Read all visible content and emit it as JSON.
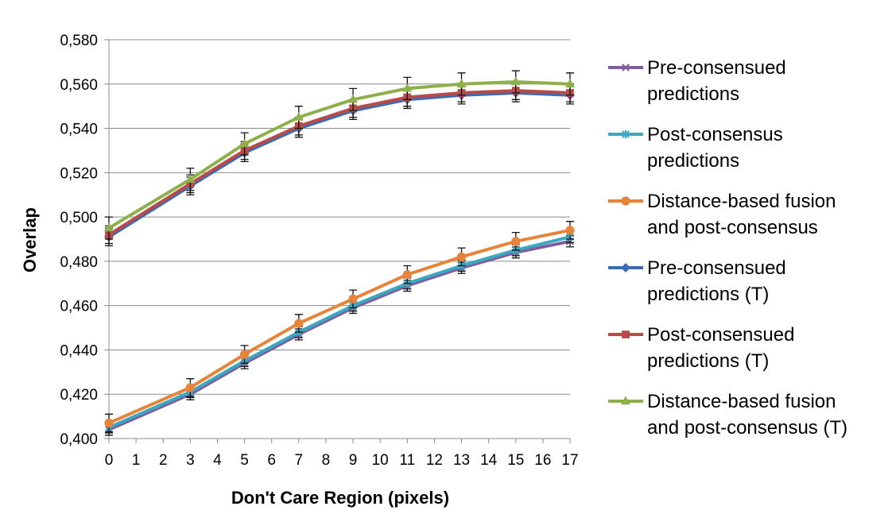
{
  "chart_data": {
    "type": "line",
    "title": "",
    "xlabel": "Don't Care Region (pixels)",
    "ylabel": "Overlap",
    "x_ticks": [
      "0",
      "1",
      "2",
      "3",
      "4",
      "5",
      "6",
      "7",
      "8",
      "9",
      "10",
      "11",
      "12",
      "13",
      "14",
      "15",
      "16",
      "17"
    ],
    "x": [
      0,
      3,
      5,
      7,
      9,
      11,
      13,
      15,
      17
    ],
    "ylim": [
      0.4,
      0.58
    ],
    "y_ticks": [
      {
        "value": 0.4,
        "label": "0,400"
      },
      {
        "value": 0.42,
        "label": "0,420"
      },
      {
        "value": 0.44,
        "label": "0,440"
      },
      {
        "value": 0.46,
        "label": "0,460"
      },
      {
        "value": 0.48,
        "label": "0,480"
      },
      {
        "value": 0.5,
        "label": "0,500"
      },
      {
        "value": 0.52,
        "label": "0,520"
      },
      {
        "value": 0.54,
        "label": "0,540"
      },
      {
        "value": 0.56,
        "label": "0,560"
      },
      {
        "value": 0.58,
        "label": "0,580"
      }
    ],
    "grid": "horizontal",
    "legend_position": "right",
    "error_bars": true,
    "series": [
      {
        "name": "Pre-consensued predictions",
        "label_lines": [
          "Pre-consensued",
          "predictions"
        ],
        "color": "#7E5C9E",
        "marker": "x",
        "values": [
          0.404,
          0.42,
          0.434,
          0.447,
          0.459,
          0.469,
          0.477,
          0.484,
          0.489
        ],
        "errors": [
          0.0025,
          0.0025,
          0.0025,
          0.0025,
          0.0025,
          0.0025,
          0.0025,
          0.0025,
          0.0025
        ]
      },
      {
        "name": "Post-consensus predictions",
        "label_lines": [
          "Post-consensus",
          "predictions"
        ],
        "color": "#3AA8C1",
        "marker": "asterisk",
        "values": [
          0.405,
          0.421,
          0.435,
          0.448,
          0.46,
          0.47,
          0.478,
          0.485,
          0.491
        ],
        "errors": [
          0.0025,
          0.0025,
          0.0025,
          0.0025,
          0.0025,
          0.0025,
          0.0025,
          0.0025,
          0.0025
        ]
      },
      {
        "name": "Distance-based fusion and post-consensus",
        "label_lines": [
          "Distance-based fusion",
          "and post-consensus"
        ],
        "color": "#E8843A",
        "marker": "circle",
        "values": [
          0.407,
          0.423,
          0.438,
          0.452,
          0.463,
          0.474,
          0.482,
          0.489,
          0.494
        ],
        "errors": [
          0.004,
          0.004,
          0.004,
          0.004,
          0.004,
          0.004,
          0.004,
          0.004,
          0.004
        ]
      },
      {
        "name": "Pre-consensued predictions (T)",
        "label_lines": [
          "Pre-consensued",
          "predictions (T)"
        ],
        "color": "#3A6CB4",
        "marker": "diamond",
        "values": [
          0.491,
          0.514,
          0.529,
          0.54,
          0.548,
          0.553,
          0.555,
          0.556,
          0.555
        ],
        "errors": [
          0.004,
          0.004,
          0.004,
          0.004,
          0.004,
          0.004,
          0.004,
          0.004,
          0.004
        ]
      },
      {
        "name": "Post-consensued predictions (T)",
        "label_lines": [
          "Post-consensued",
          "predictions (T)"
        ],
        "color": "#B94A48",
        "marker": "square",
        "values": [
          0.492,
          0.515,
          0.53,
          0.541,
          0.549,
          0.554,
          0.556,
          0.557,
          0.556
        ],
        "errors": [
          0.004,
          0.004,
          0.004,
          0.004,
          0.004,
          0.004,
          0.004,
          0.004,
          0.004
        ]
      },
      {
        "name": "Distance-based fusion and post-consensus (T)",
        "label_lines": [
          "Distance-based fusion",
          "and post-consensus (T)"
        ],
        "color": "#8DB04A",
        "marker": "triangle",
        "values": [
          0.495,
          0.517,
          0.533,
          0.545,
          0.553,
          0.558,
          0.56,
          0.561,
          0.56
        ],
        "errors": [
          0.005,
          0.005,
          0.005,
          0.005,
          0.005,
          0.005,
          0.005,
          0.005,
          0.005
        ]
      }
    ]
  }
}
